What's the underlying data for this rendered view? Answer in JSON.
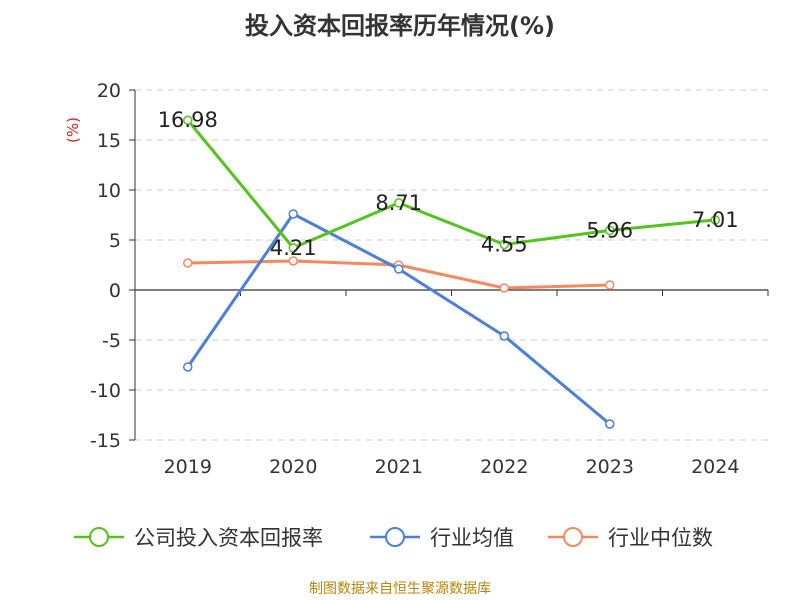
{
  "chart_data": {
    "type": "line",
    "title": "投入资本回报率历年情况(%)",
    "ylabel": "(%)",
    "categories": [
      "2019",
      "2020",
      "2021",
      "2022",
      "2023",
      "2024"
    ],
    "ylim": [
      -15,
      20
    ],
    "yticks": [
      20,
      15,
      10,
      5,
      0,
      -5,
      -10,
      -15
    ],
    "grid": true,
    "legend_position": "bottom",
    "series": [
      {
        "name": "公司投入资本回报率",
        "color": "#52c41a",
        "values": [
          16.98,
          4.21,
          8.71,
          4.55,
          5.96,
          7.01
        ],
        "labels": [
          "16.98",
          "4.21",
          "8.71",
          "4.55",
          "5.96",
          "7.01"
        ]
      },
      {
        "name": "行业均值",
        "color": "#4a7fdb",
        "values": [
          -7.7,
          7.6,
          2.1,
          -4.6,
          -13.4,
          null
        ]
      },
      {
        "name": "行业中位数",
        "color": "#f4895f",
        "values": [
          2.7,
          2.9,
          2.5,
          0.2,
          0.5,
          null
        ]
      }
    ]
  },
  "source": "制图数据来自恒生聚源数据库"
}
